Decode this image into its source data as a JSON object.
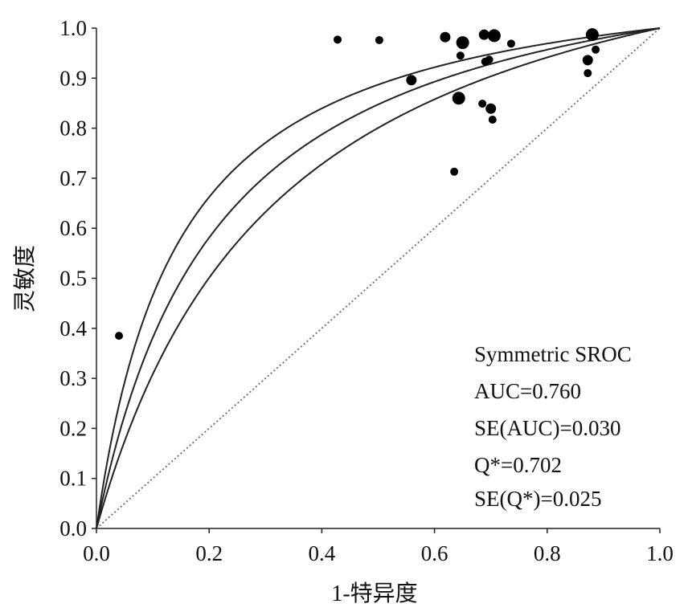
{
  "chart_data": {
    "type": "scatter",
    "title": "",
    "xlabel": "1-特异度",
    "ylabel": "灵敏度",
    "xlim": [
      0,
      1
    ],
    "ylim": [
      0,
      1
    ],
    "xticks": [
      "0.0",
      "0.2",
      "0.4",
      "0.6",
      "0.8",
      "1.0"
    ],
    "yticks": [
      "0.0",
      "0.1",
      "0.2",
      "0.3",
      "0.4",
      "0.5",
      "0.6",
      "0.7",
      "0.8",
      "0.9",
      "1.0"
    ],
    "grid": false,
    "points": [
      {
        "x": 0.428,
        "y": 0.977,
        "size": "small"
      },
      {
        "x": 0.502,
        "y": 0.976,
        "size": "small"
      },
      {
        "x": 0.619,
        "y": 0.982,
        "size": "medium"
      },
      {
        "x": 0.65,
        "y": 0.971,
        "size": "large"
      },
      {
        "x": 0.688,
        "y": 0.987,
        "size": "medium"
      },
      {
        "x": 0.706,
        "y": 0.985,
        "size": "large"
      },
      {
        "x": 0.736,
        "y": 0.969,
        "size": "small"
      },
      {
        "x": 0.646,
        "y": 0.945,
        "size": "small"
      },
      {
        "x": 0.69,
        "y": 0.933,
        "size": "small"
      },
      {
        "x": 0.697,
        "y": 0.937,
        "size": "small"
      },
      {
        "x": 0.559,
        "y": 0.896,
        "size": "medium"
      },
      {
        "x": 0.643,
        "y": 0.86,
        "size": "large"
      },
      {
        "x": 0.685,
        "y": 0.849,
        "size": "small"
      },
      {
        "x": 0.7,
        "y": 0.839,
        "size": "medium"
      },
      {
        "x": 0.703,
        "y": 0.817,
        "size": "small"
      },
      {
        "x": 0.635,
        "y": 0.713,
        "size": "small"
      },
      {
        "x": 0.88,
        "y": 0.987,
        "size": "large"
      },
      {
        "x": 0.886,
        "y": 0.957,
        "size": "small"
      },
      {
        "x": 0.872,
        "y": 0.936,
        "size": "medium"
      },
      {
        "x": 0.872,
        "y": 0.91,
        "size": "small"
      },
      {
        "x": 0.04,
        "y": 0.385,
        "size": "small"
      }
    ],
    "curves": [
      {
        "name": "upper",
        "D": 2.06
      },
      {
        "name": "SROC",
        "D": 1.714
      },
      {
        "name": "lower",
        "D": 1.39
      }
    ],
    "reference_line": "diagonal dotted",
    "annotation": [
      "Symmetric SROC",
      "AUC=0.760",
      "SE(AUC)=0.030",
      "Q*=0.702",
      "SE(Q*)=0.025"
    ],
    "annotation_position": "bottom-right"
  }
}
